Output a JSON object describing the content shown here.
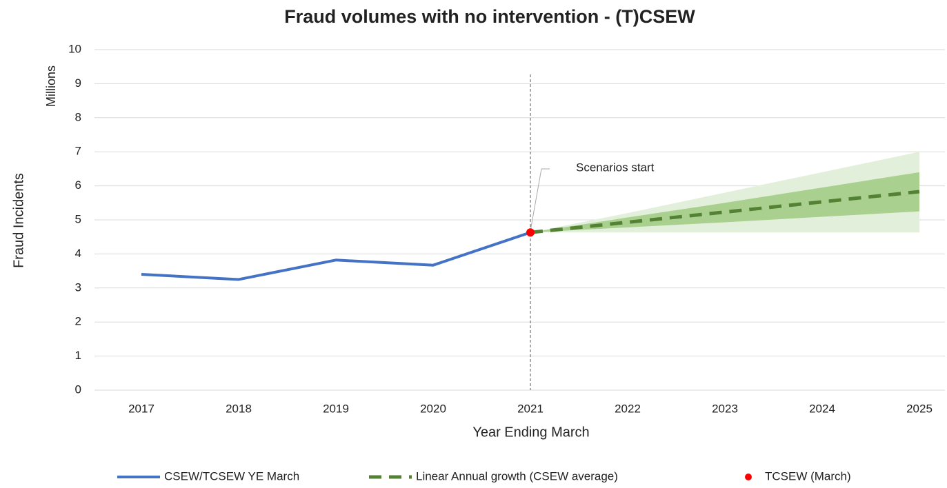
{
  "chart_data": {
    "type": "line",
    "title": "Fraud volumes with no intervention - (T)CSEW",
    "x_label": "Year Ending March",
    "y_label": "Fraud Incidents",
    "y_unit": "Millions",
    "categories": [
      "2017",
      "2018",
      "2019",
      "2020",
      "2021",
      "2022",
      "2023",
      "2024",
      "2025"
    ],
    "ylim": [
      0,
      10
    ],
    "yticks": [
      0,
      1,
      2,
      3,
      4,
      5,
      6,
      7,
      8,
      9,
      10
    ],
    "grid": true,
    "legend": "bottom",
    "annotation": {
      "text": "Scenarios start",
      "category": 4
    },
    "series": [
      {
        "name": "CSEW/TCSEW YE March",
        "color": "#4472c4",
        "style": "solid",
        "values": [
          3.4,
          3.25,
          3.82,
          3.67,
          4.63,
          null,
          null,
          null,
          null
        ]
      },
      {
        "name": "Linear Annual growth (CSEW average)",
        "color": "#548235",
        "style": "dashed",
        "values": [
          null,
          null,
          null,
          null,
          4.63,
          4.93,
          5.23,
          5.53,
          5.83
        ]
      },
      {
        "name": "TCSEW (March)",
        "color": "#ff0000",
        "style": "point",
        "values": [
          null,
          null,
          null,
          null,
          4.63,
          null,
          null,
          null,
          null
        ]
      }
    ],
    "bands": [
      {
        "color": "#e2efda",
        "lower": [
          null,
          null,
          null,
          null,
          4.63,
          4.63,
          4.63,
          4.63,
          4.63
        ],
        "upper": [
          null,
          null,
          null,
          null,
          4.63,
          5.2,
          5.8,
          6.4,
          7.0
        ]
      },
      {
        "color": "#a9d08e",
        "lower": [
          null,
          null,
          null,
          null,
          4.63,
          4.78,
          4.93,
          5.09,
          5.25
        ],
        "upper": [
          null,
          null,
          null,
          null,
          4.63,
          5.07,
          5.5,
          5.95,
          6.4
        ]
      }
    ]
  }
}
